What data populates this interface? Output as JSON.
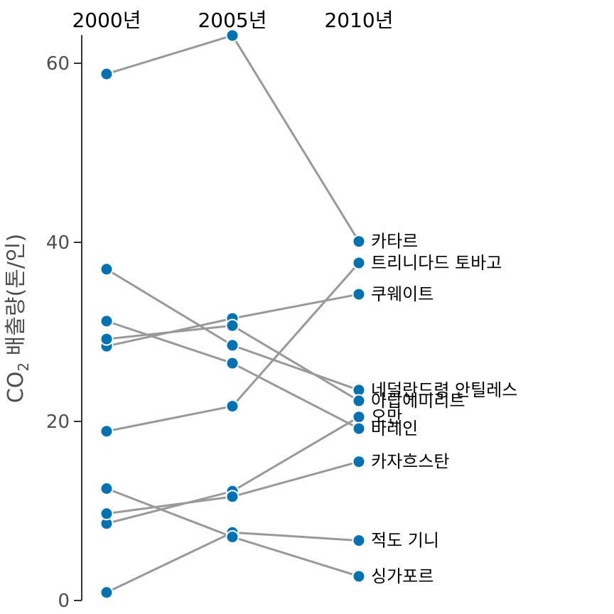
{
  "chart_data": {
    "type": "line",
    "variant": "slopegraph",
    "x": [
      "2000년",
      "2005년",
      "2010년"
    ],
    "ylabel": "CO₂ 배출량(톤/인)",
    "ylim": [
      0,
      63
    ],
    "yticks": [
      0,
      20,
      40,
      60
    ],
    "grid": false,
    "legend": "none",
    "colors": {
      "point": "#0072b2",
      "line": "#999999",
      "axis": "#333333",
      "text": "#000000",
      "tick_text": "#4d4d4d"
    },
    "series": [
      {
        "name": "카타르",
        "values": [
          58.8,
          63.1,
          40.1
        ]
      },
      {
        "name": "트리니다드 토바고",
        "values": [
          18.9,
          21.7,
          37.7
        ]
      },
      {
        "name": "쿠웨이트",
        "values": [
          28.4,
          31.5,
          34.2
        ]
      },
      {
        "name": "네덜란드령 안틸레스",
        "values": [
          37.0,
          28.5,
          23.5
        ]
      },
      {
        "name": "아랍에미리트",
        "values": [
          29.2,
          30.7,
          22.3
        ]
      },
      {
        "name": "오만",
        "values": [
          8.6,
          12.2,
          20.5
        ]
      },
      {
        "name": "바레인",
        "values": [
          31.2,
          26.5,
          19.2
        ]
      },
      {
        "name": "카자흐스탄",
        "values": [
          9.7,
          11.6,
          15.5
        ]
      },
      {
        "name": "적도 기니",
        "values": [
          0.9,
          7.6,
          6.7
        ]
      },
      {
        "name": "싱가포르",
        "values": [
          12.5,
          7.1,
          2.7
        ]
      }
    ]
  }
}
